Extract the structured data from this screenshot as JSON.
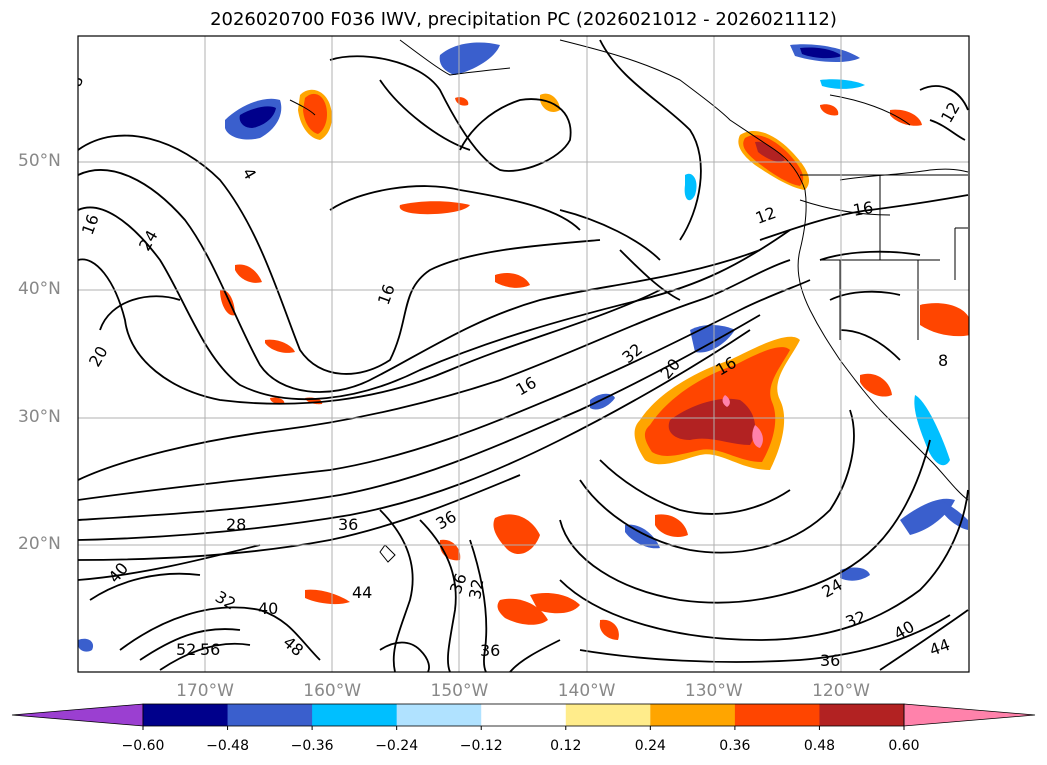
{
  "title": "2026020700 F036 IWV, precipitation PC (2026021012 - 2026021112)",
  "lat_labels": [
    {
      "text": "50°N",
      "lat": 50
    },
    {
      "text": "40°N",
      "lat": 40
    },
    {
      "text": "30°N",
      "lat": 30
    },
    {
      "text": "20°N",
      "lat": 20
    }
  ],
  "lon_labels": [
    {
      "text": "170°W",
      "lon": -170
    },
    {
      "text": "160°W",
      "lon": -160
    },
    {
      "text": "150°W",
      "lon": -150
    },
    {
      "text": "140°W",
      "lon": -140
    },
    {
      "text": "130°W",
      "lon": -130
    },
    {
      "text": "120°W",
      "lon": -120
    }
  ],
  "contour_labels": [
    "8",
    "4",
    "16",
    "24",
    "20",
    "16",
    "16",
    "32",
    "20",
    "16",
    "12",
    "16",
    "8",
    "12",
    "28",
    "36",
    "36",
    "40",
    "32",
    "40",
    "44",
    "48",
    "36",
    "32",
    "36",
    "24",
    "32",
    "40",
    "44",
    "36",
    "56",
    "52"
  ],
  "colorbar": {
    "ticks": [
      "−0.60",
      "−0.48",
      "−0.36",
      "−0.24",
      "−0.12",
      "0.12",
      "0.24",
      "0.36",
      "0.48",
      "0.60"
    ],
    "colors": [
      "#9b3fd1",
      "#00008b",
      "#3a5fcd",
      "#00bfff",
      "#b0e2ff",
      "#ffffff",
      "#ffec8b",
      "#ffa500",
      "#ff4500",
      "#b22222",
      "#ff82ab"
    ]
  }
}
